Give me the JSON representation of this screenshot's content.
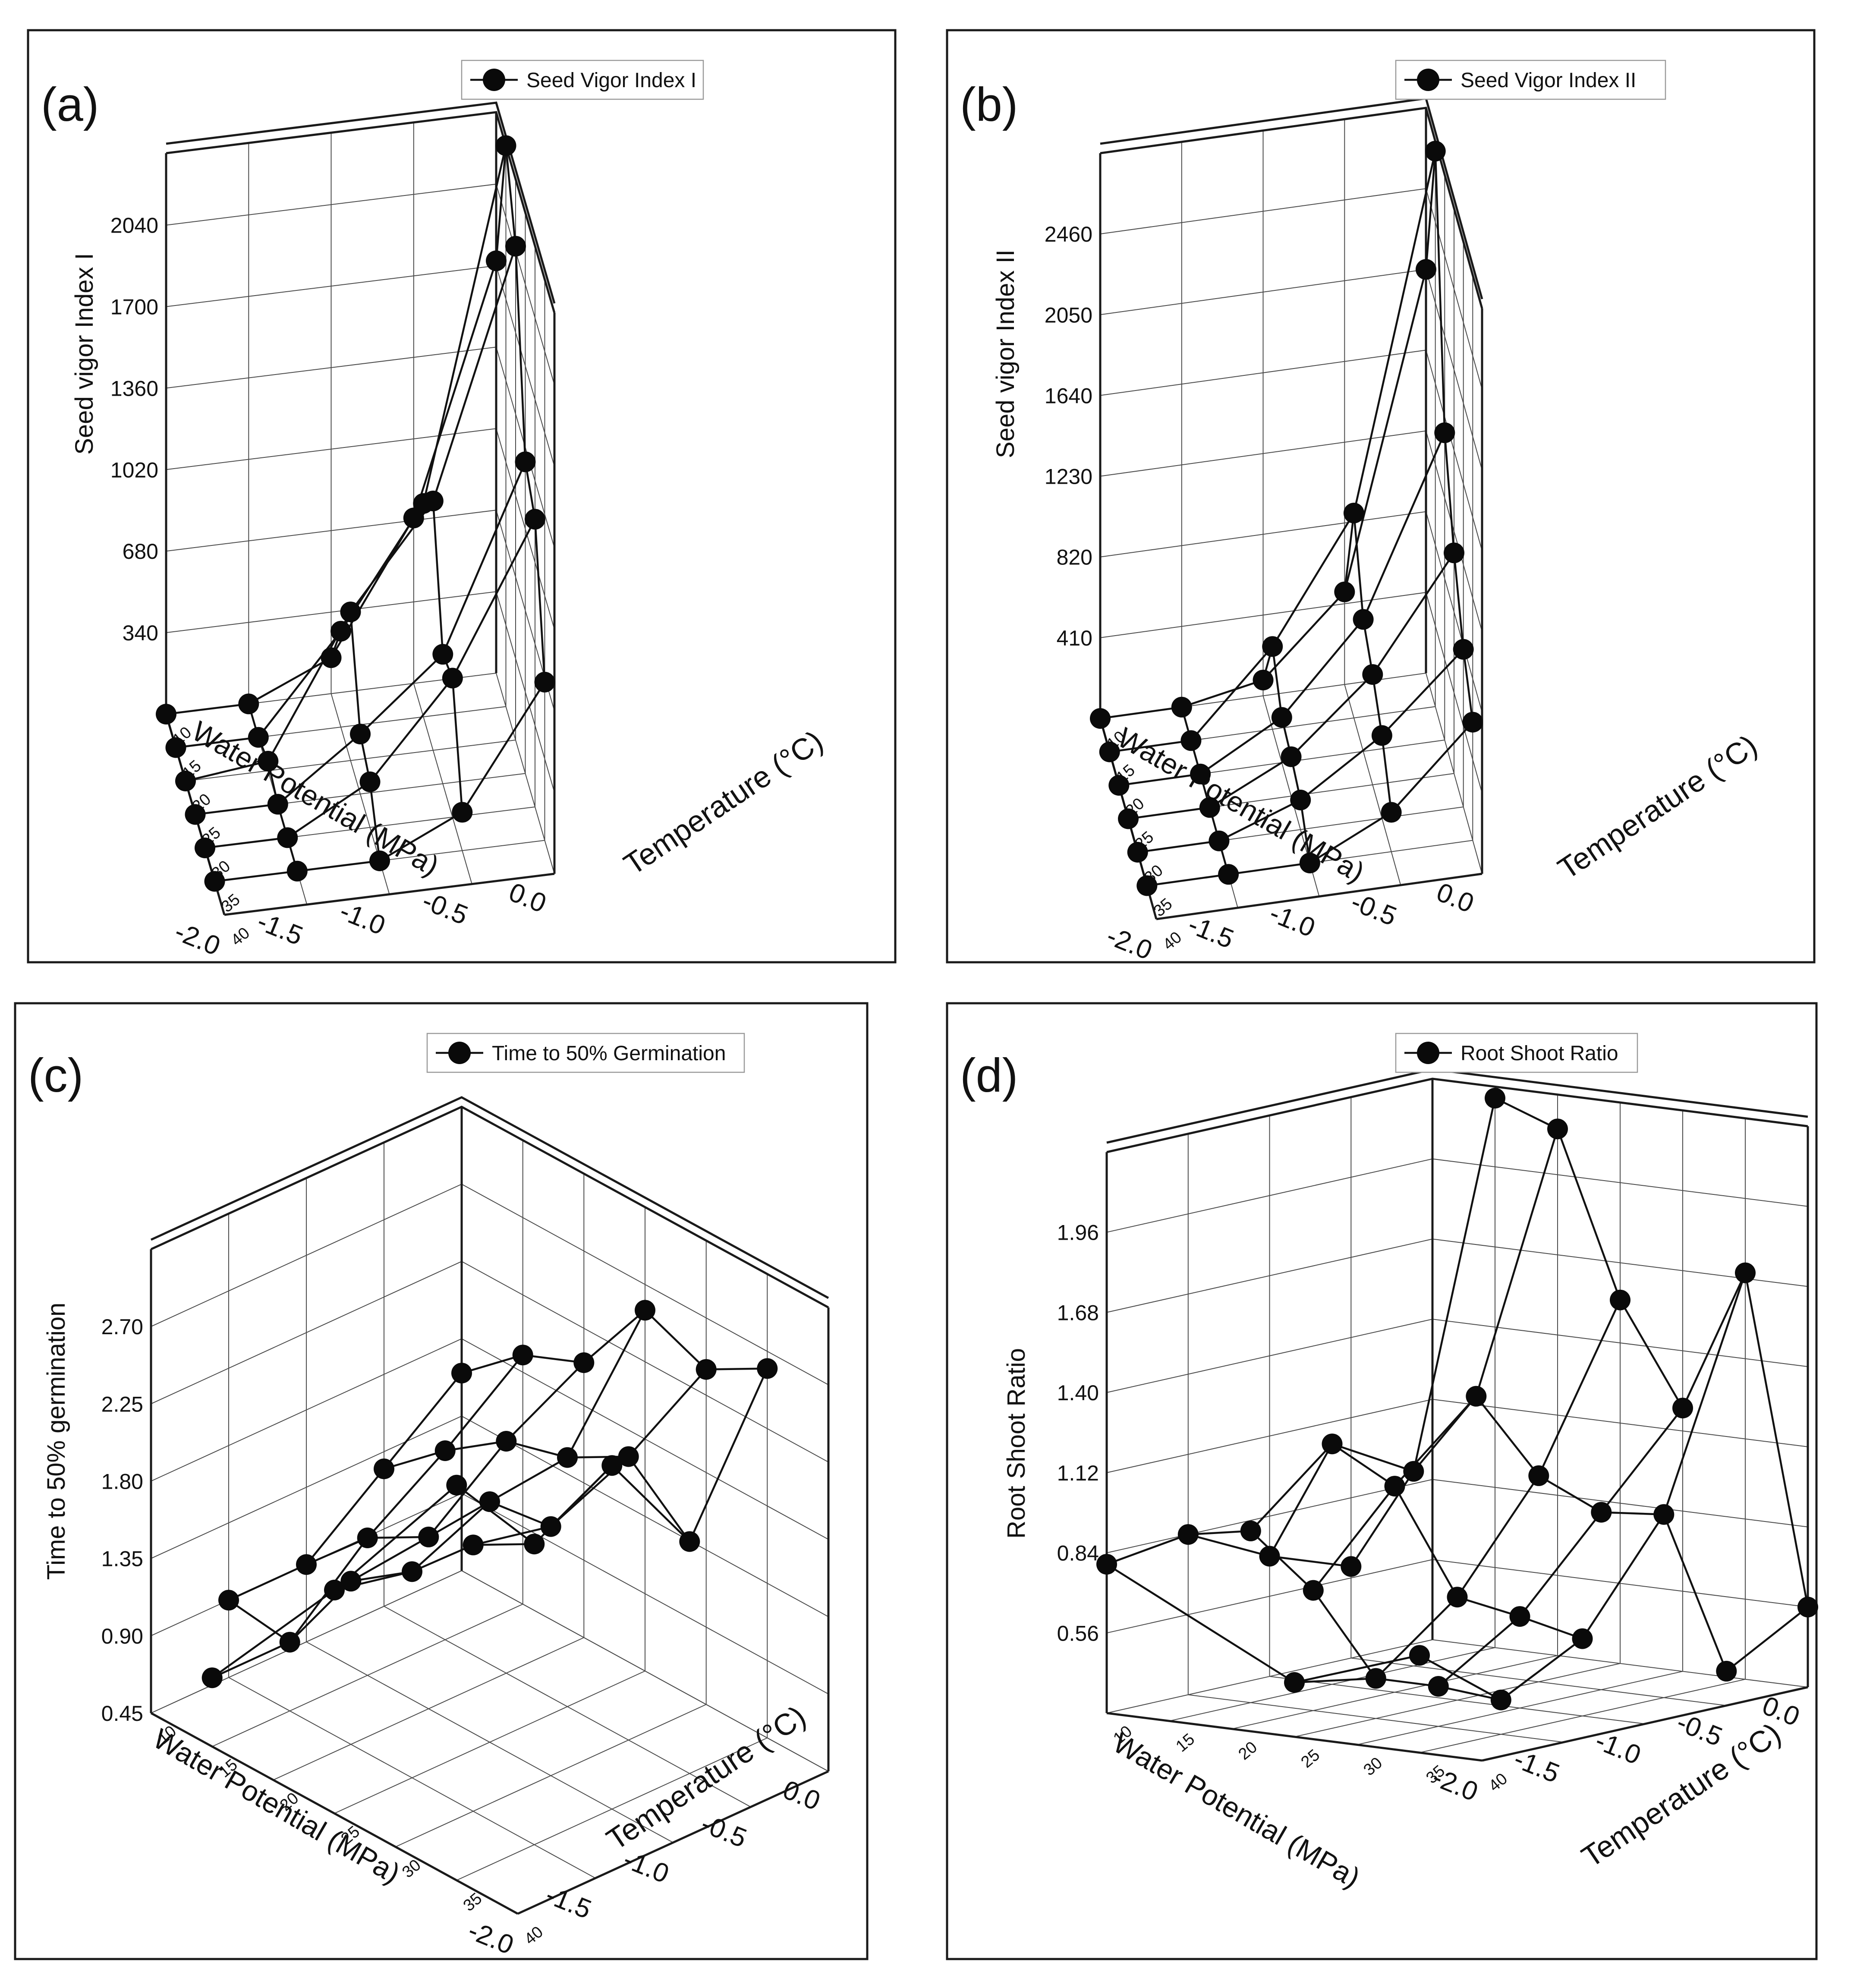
{
  "chart_data": [
    {
      "type": "scatter",
      "panel_label": "(a)",
      "legend": "Seed Vigor Index I",
      "zlabel": "Seed vigor Index I",
      "xlabel": "Water Potential (MPa)",
      "ylabel": "Temperature (°C)",
      "x_ticks": [
        "0.0",
        "-0.5",
        "-1.0",
        "-1.5",
        "-2.0"
      ],
      "y_ticks": [
        "10",
        "15",
        "20",
        "25",
        "30",
        "35",
        "40"
      ],
      "z_ticks": [
        "340",
        "680",
        "1020",
        "1360",
        "1700",
        "2040"
      ],
      "xlim": [
        0,
        -2.0
      ],
      "ylim": [
        10,
        40
      ],
      "zlim": [
        0,
        2340
      ],
      "points": [
        {
          "x": 0.0,
          "y": 10,
          "z": 1720
        },
        {
          "x": -0.5,
          "y": 10,
          "z": 690
        },
        {
          "x": -1.0,
          "y": 10,
          "z": 150
        },
        {
          "x": -1.5,
          "y": 10,
          "z": 0
        },
        {
          "x": -2.0,
          "y": 10,
          "z": 0
        },
        {
          "x": 0.0,
          "y": 15,
          "z": 2340
        },
        {
          "x": -0.5,
          "y": 15,
          "z": 890
        },
        {
          "x": -1.0,
          "y": 15,
          "z": 400
        },
        {
          "x": -1.5,
          "y": 15,
          "z": 0
        },
        {
          "x": -2.0,
          "y": 15,
          "z": 0
        },
        {
          "x": 0.0,
          "y": 20,
          "z": 2060
        },
        {
          "x": -0.5,
          "y": 20,
          "z": 1040
        },
        {
          "x": -1.0,
          "y": 20,
          "z": 620
        },
        {
          "x": -1.5,
          "y": 20,
          "z": 40
        },
        {
          "x": -2.0,
          "y": 20,
          "z": 0
        },
        {
          "x": 0.0,
          "y": 25,
          "z": 1300
        },
        {
          "x": -0.5,
          "y": 25,
          "z": 540
        },
        {
          "x": -1.0,
          "y": 25,
          "z": 250
        },
        {
          "x": -1.5,
          "y": 25,
          "z": 0
        },
        {
          "x": -2.0,
          "y": 25,
          "z": 0
        },
        {
          "x": 0.0,
          "y": 30,
          "z": 1200
        },
        {
          "x": -0.5,
          "y": 30,
          "z": 580
        },
        {
          "x": -1.0,
          "y": 30,
          "z": 190
        },
        {
          "x": -1.5,
          "y": 30,
          "z": 0
        },
        {
          "x": -2.0,
          "y": 30,
          "z": 0
        },
        {
          "x": 0.0,
          "y": 35,
          "z": 660
        },
        {
          "x": -0.5,
          "y": 35,
          "z": 160
        },
        {
          "x": -1.0,
          "y": 35,
          "z": 0
        },
        {
          "x": -1.5,
          "y": 35,
          "z": 0
        },
        {
          "x": -2.0,
          "y": 35,
          "z": 0
        }
      ]
    },
    {
      "type": "scatter",
      "panel_label": "(b)",
      "legend": "Seed Vigor Index II",
      "zlabel": "Seed vigor Index II",
      "xlabel": "Water Potential (MPa)",
      "ylabel": "Temperature (°C)",
      "x_ticks": [
        "0.0",
        "-0.5",
        "-1.0",
        "-1.5",
        "-2.0"
      ],
      "y_ticks": [
        "10",
        "15",
        "20",
        "25",
        "30",
        "35",
        "40"
      ],
      "z_ticks": [
        "410",
        "820",
        "1230",
        "1640",
        "2050",
        "2460"
      ],
      "xlim": [
        0,
        -2.0
      ],
      "ylim": [
        10,
        40
      ],
      "zlim": [
        0,
        2870
      ],
      "points": [
        {
          "x": 0.0,
          "y": 10,
          "z": 2050
        },
        {
          "x": -0.5,
          "y": 10,
          "z": 470
        },
        {
          "x": -1.0,
          "y": 10,
          "z": 80
        },
        {
          "x": -1.5,
          "y": 10,
          "z": 0
        },
        {
          "x": -2.0,
          "y": 10,
          "z": 0
        },
        {
          "x": 0.0,
          "y": 15,
          "z": 2820
        },
        {
          "x": -0.5,
          "y": 15,
          "z": 1040
        },
        {
          "x": -1.0,
          "y": 15,
          "z": 420
        },
        {
          "x": -1.5,
          "y": 15,
          "z": 0
        },
        {
          "x": -2.0,
          "y": 15,
          "z": 0
        },
        {
          "x": 0.0,
          "y": 20,
          "z": 1560
        },
        {
          "x": -0.5,
          "y": 20,
          "z": 670
        },
        {
          "x": -1.0,
          "y": 20,
          "z": 230
        },
        {
          "x": -1.5,
          "y": 20,
          "z": 0
        },
        {
          "x": -2.0,
          "y": 20,
          "z": 0
        },
        {
          "x": 0.0,
          "y": 25,
          "z": 1120
        },
        {
          "x": -0.5,
          "y": 25,
          "z": 560
        },
        {
          "x": -1.0,
          "y": 25,
          "z": 200
        },
        {
          "x": -1.5,
          "y": 25,
          "z": 0
        },
        {
          "x": -2.0,
          "y": 25,
          "z": 0
        },
        {
          "x": 0.0,
          "y": 30,
          "z": 800
        },
        {
          "x": -0.5,
          "y": 30,
          "z": 420
        },
        {
          "x": -1.0,
          "y": 30,
          "z": 150
        },
        {
          "x": -1.5,
          "y": 30,
          "z": 0
        },
        {
          "x": -2.0,
          "y": 30,
          "z": 0
        },
        {
          "x": 0.0,
          "y": 35,
          "z": 600
        },
        {
          "x": -0.5,
          "y": 35,
          "z": 200
        },
        {
          "x": -1.0,
          "y": 35,
          "z": 0
        },
        {
          "x": -1.5,
          "y": 35,
          "z": 0
        },
        {
          "x": -2.0,
          "y": 35,
          "z": 0
        }
      ]
    },
    {
      "type": "scatter",
      "panel_label": "(c)",
      "legend": "Time to 50% Germination",
      "zlabel": "Time to 50% germination",
      "xlabel": "Water Potential (MPa)",
      "ylabel": "Temperature (°C)",
      "x_ticks": [
        "0.0",
        "-0.5",
        "-1.0",
        "-1.5",
        "-2.0"
      ],
      "y_ticks": [
        "10",
        "15",
        "20",
        "25",
        "30",
        "35",
        "40"
      ],
      "z_ticks": [
        "0.45",
        "0.90",
        "1.35",
        "1.80",
        "2.25",
        "2.70"
      ],
      "xlim": [
        0,
        -2.0
      ],
      "ylim": [
        10,
        40
      ],
      "zlim": [
        0.45,
        3.15
      ],
      "points": [
        {
          "x": 0.0,
          "y": 10,
          "z": 1.6
        },
        {
          "x": -0.5,
          "y": 10,
          "z": 1.25
        },
        {
          "x": -1.0,
          "y": 10,
          "z": 0.9
        },
        {
          "x": -1.5,
          "y": 10,
          "z": 0.9
        },
        {
          "x": 0.0,
          "y": 15,
          "z": 1.9
        },
        {
          "x": -0.5,
          "y": 15,
          "z": 1.55
        },
        {
          "x": -1.0,
          "y": 15,
          "z": 1.25
        },
        {
          "x": -1.5,
          "y": 15,
          "z": 0.85
        },
        {
          "x": -2.0,
          "y": 15,
          "z": 0.85
        },
        {
          "x": 0.0,
          "y": 20,
          "z": 2.05
        },
        {
          "x": -0.5,
          "y": 20,
          "z": 1.8
        },
        {
          "x": -1.0,
          "y": 20,
          "z": 1.45
        },
        {
          "x": -1.5,
          "y": 20,
          "z": 1.4
        },
        {
          "x": 0.0,
          "y": 25,
          "z": 2.55
        },
        {
          "x": -0.5,
          "y": 25,
          "z": 1.9
        },
        {
          "x": -1.0,
          "y": 25,
          "z": 1.85
        },
        {
          "x": -1.5,
          "y": 25,
          "z": 1.65
        },
        {
          "x": -2.0,
          "y": 25,
          "z": 1.75
        },
        {
          "x": 0.0,
          "y": 30,
          "z": 2.4
        },
        {
          "x": -0.5,
          "y": 30,
          "z": 2.1
        },
        {
          "x": -1.0,
          "y": 30,
          "z": 1.9
        },
        {
          "x": -1.5,
          "y": 30,
          "z": 2.0
        },
        {
          "x": 0.0,
          "y": 35,
          "z": 2.6
        },
        {
          "x": -0.5,
          "y": 35,
          "z": 1.8
        },
        {
          "x": -1.0,
          "y": 35,
          "z": 2.45
        },
        {
          "x": -1.5,
          "y": 35,
          "z": 2.2
        },
        {
          "x": -2.0,
          "y": 35,
          "z": 2.75
        }
      ]
    },
    {
      "type": "scatter",
      "panel_label": "(d)",
      "legend": "Root Shoot Ratio",
      "zlabel": "Root Shoot Ratio",
      "xlabel": "Water Potential (MPa)",
      "ylabel": "Temperature (°C)",
      "x_ticks": [
        "0.0",
        "-0.5",
        "-1.0",
        "-1.5",
        "-2.0"
      ],
      "y_ticks": [
        "10",
        "15",
        "20",
        "25",
        "30",
        "35",
        "40"
      ],
      "z_ticks": [
        "0.56",
        "0.84",
        "1.12",
        "1.40",
        "1.68",
        "1.96"
      ],
      "xlim": [
        0,
        -2.0
      ],
      "ylim": [
        10,
        40
      ],
      "zlim": [
        0.28,
        2.24
      ],
      "points": [
        {
          "x": -0.5,
          "y": 10,
          "z": 0.6
        },
        {
          "x": -1.0,
          "y": 10,
          "z": 0.7
        },
        {
          "x": -1.5,
          "y": 10,
          "z": 0.84
        },
        {
          "x": -2.0,
          "y": 10,
          "z": 0.8
        },
        {
          "x": 0.0,
          "y": 15,
          "z": 2.2
        },
        {
          "x": -0.5,
          "y": 15,
          "z": 0.96
        },
        {
          "x": -1.0,
          "y": 15,
          "z": 1.12
        },
        {
          "x": -1.5,
          "y": 15,
          "z": 0.88
        },
        {
          "x": 0.0,
          "y": 20,
          "z": 2.12
        },
        {
          "x": -0.5,
          "y": 20,
          "z": 1.25
        },
        {
          "x": -1.0,
          "y": 20,
          "z": 1.0
        },
        {
          "x": -1.5,
          "y": 20,
          "z": 0.7
        },
        {
          "x": 0.0,
          "y": 25,
          "z": 1.55
        },
        {
          "x": -0.5,
          "y": 25,
          "z": 1.0
        },
        {
          "x": -1.0,
          "y": 25,
          "z": 0.64
        },
        {
          "x": -1.5,
          "y": 25,
          "z": 0.42
        },
        {
          "x": -2.0,
          "y": 25,
          "z": 0.47
        },
        {
          "x": 0.0,
          "y": 30,
          "z": 1.2
        },
        {
          "x": -0.5,
          "y": 30,
          "z": 0.9
        },
        {
          "x": -1.0,
          "y": 30,
          "z": 0.6
        },
        {
          "x": -1.5,
          "y": 30,
          "z": 0.42
        },
        {
          "x": 0.0,
          "y": 35,
          "z": 1.7
        },
        {
          "x": -0.5,
          "y": 35,
          "z": 0.92
        },
        {
          "x": -1.0,
          "y": 35,
          "z": 0.55
        },
        {
          "x": -1.5,
          "y": 35,
          "z": 0.4
        },
        {
          "x": -2.0,
          "y": 35,
          "z": 0.62
        },
        {
          "x": 0.0,
          "y": 40,
          "z": 0.56
        },
        {
          "x": -0.5,
          "y": 40,
          "z": 0.4
        }
      ]
    }
  ]
}
